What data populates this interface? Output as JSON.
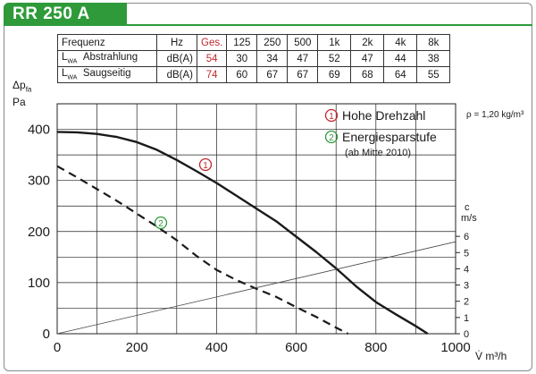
{
  "title": "RR 250 A",
  "sound_table": {
    "headers": [
      "Frequenz",
      "Hz",
      "Ges.",
      "125",
      "250",
      "500",
      "1k",
      "2k",
      "4k",
      "8k"
    ],
    "rows": [
      {
        "sym": "L",
        "sub": "WA",
        "label": "Abstrahlung",
        "unit": "dB(A)",
        "total": "54",
        "bands": [
          "30",
          "34",
          "47",
          "52",
          "47",
          "44",
          "38"
        ]
      },
      {
        "sym": "L",
        "sub": "WA",
        "label": "Saugseitig",
        "unit": "dB(A)",
        "total": "74",
        "bands": [
          "60",
          "67",
          "67",
          "69",
          "68",
          "64",
          "55"
        ]
      }
    ]
  },
  "chart_data": {
    "type": "line",
    "ylabel_symbol": "Δp",
    "ylabel_sub": "fa",
    "ylabel_unit": "Pa",
    "xlabel": "V̇ m³/h",
    "xlim": [
      0,
      1000
    ],
    "ylim": [
      0,
      450
    ],
    "x_ticks": [
      "0",
      "200",
      "400",
      "600",
      "800",
      "1000"
    ],
    "y_ticks": [
      "0",
      "100",
      "200",
      "300",
      "400"
    ],
    "y2_label": "c",
    "y2_unit": "m/s",
    "y2_ticks": [
      "0",
      "1",
      "2",
      "3",
      "4",
      "5",
      "6"
    ],
    "y2_range": [
      0,
      7
    ],
    "density_note": "ρ = 1,20 kg/m³",
    "grid": true,
    "legend": [
      {
        "marker": "1",
        "text": "Hohe Drehzahl",
        "color": "#c0282d"
      },
      {
        "marker": "2",
        "text": "Energiesparstufe",
        "note": "(ab Mitte 2010)",
        "color": "#2e9a3a"
      }
    ],
    "series": [
      {
        "marker": "1",
        "style": "solid",
        "x": [
          0,
          50,
          100,
          150,
          200,
          250,
          300,
          350,
          400,
          450,
          500,
          550,
          600,
          650,
          700,
          750,
          800,
          850,
          900,
          930
        ],
        "y": [
          395,
          394,
          391,
          385,
          375,
          360,
          340,
          318,
          295,
          270,
          245,
          220,
          190,
          160,
          128,
          93,
          62,
          38,
          15,
          0
        ]
      },
      {
        "marker": "2",
        "style": "dashed",
        "x": [
          0,
          50,
          100,
          150,
          200,
          250,
          300,
          350,
          400,
          450,
          500,
          550,
          600,
          650,
          700,
          730
        ],
        "y": [
          328,
          306,
          283,
          260,
          235,
          210,
          183,
          152,
          125,
          105,
          88,
          72,
          52,
          33,
          12,
          0
        ]
      },
      {
        "name": "c",
        "style": "thin",
        "x": [
          0,
          1000
        ],
        "y": [
          0,
          180
        ]
      }
    ]
  }
}
